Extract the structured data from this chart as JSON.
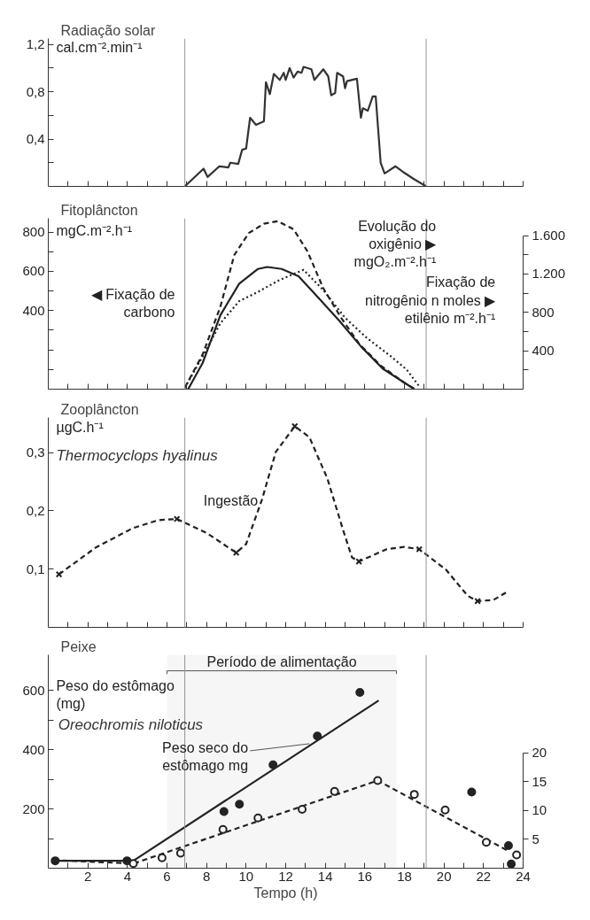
{
  "chart_data": [
    {
      "type": "line",
      "title": "Radiação solar",
      "ylabel": "cal.cm⁻².min⁻¹",
      "xlim": [
        0,
        24
      ],
      "ylim": [
        0,
        1.25
      ],
      "xticks": [
        {
          "value": 1,
          "label": null
        },
        2,
        {
          "value": 3,
          "label": null
        },
        4,
        {
          "value": 5,
          "label": null
        },
        6,
        {
          "value": 7,
          "label": null
        },
        8,
        {
          "value": 9,
          "label": null
        },
        10,
        {
          "value": 11,
          "label": null
        },
        12,
        {
          "value": 13,
          "label": null
        },
        14,
        {
          "value": 15,
          "label": null
        },
        16,
        {
          "value": 17,
          "label": null
        },
        18,
        {
          "value": 19,
          "label": null
        },
        20,
        {
          "value": 21,
          "label": null
        },
        22,
        {
          "value": 23,
          "label": null
        },
        24
      ],
      "yticks": [
        {
          "value": 0.2,
          "label": null
        },
        {
          "value": 0.4,
          "label": "0,4"
        },
        {
          "value": 0.6,
          "label": null
        },
        {
          "value": 0.8,
          "label": "0,8"
        },
        {
          "value": 1.0,
          "label": null
        },
        {
          "value": 1.2,
          "label": "1,2"
        }
      ],
      "tick_labels": "y",
      "grid": false,
      "ref_lines": [
        {
          "axis": "x",
          "value": 6.9,
          "color": "#999999"
        },
        {
          "axis": "x",
          "value": 19.1,
          "color": "#999999"
        }
      ],
      "series": [
        {
          "color": "#333333",
          "line_style": "solid",
          "marker": "none",
          "x": [
            6.9,
            7.85,
            8.05,
            8.65,
            9.1,
            9.2,
            9.6,
            9.8,
            10.0,
            10.2,
            10.5,
            10.9,
            11.0,
            11.2,
            11.4,
            11.7,
            11.9,
            12.0,
            12.2,
            12.4,
            12.6,
            12.8,
            12.9,
            13.3,
            13.45,
            13.9,
            14.15,
            14.3,
            14.5,
            14.6,
            14.9,
            15.0,
            15.1,
            15.6,
            15.8,
            15.9,
            16.15,
            16.4,
            16.55,
            16.8,
            17.0,
            17.55,
            17.95,
            18.5,
            19.1
          ],
          "values": [
            0.0,
            0.15,
            0.08,
            0.17,
            0.16,
            0.2,
            0.19,
            0.31,
            0.32,
            0.58,
            0.52,
            0.55,
            0.88,
            0.78,
            0.95,
            0.9,
            0.96,
            0.9,
            1.0,
            0.92,
            0.97,
            0.96,
            1.01,
            0.99,
            0.9,
            0.99,
            0.93,
            0.77,
            0.79,
            0.96,
            0.93,
            0.83,
            0.89,
            0.91,
            0.58,
            0.66,
            0.64,
            0.76,
            0.76,
            0.2,
            0.11,
            0.17,
            0.12,
            0.06,
            0.0
          ]
        }
      ]
    },
    {
      "type": "line",
      "title": "Fitoplâncton",
      "ylabel": "mgC.m⁻².h⁻¹",
      "xlim": [
        0,
        24
      ],
      "ylim": [
        0,
        870
      ],
      "y2lim": [
        0,
        1780
      ],
      "xticks": [
        {
          "value": 1,
          "label": null
        },
        2,
        {
          "value": 3,
          "label": null
        },
        4,
        {
          "value": 5,
          "label": null
        },
        6,
        {
          "value": 7,
          "label": null
        },
        8,
        {
          "value": 9,
          "label": null
        },
        10,
        {
          "value": 11,
          "label": null
        },
        12,
        {
          "value": 13,
          "label": null
        },
        14,
        {
          "value": 15,
          "label": null
        },
        16,
        {
          "value": 17,
          "label": null
        },
        18,
        {
          "value": 19,
          "label": null
        },
        20,
        {
          "value": 21,
          "label": null
        },
        22,
        {
          "value": 23,
          "label": null
        },
        24
      ],
      "yticks": [
        {
          "value": 100,
          "label": null
        },
        {
          "value": 200,
          "label": null
        },
        {
          "value": 300,
          "label": null
        },
        400,
        {
          "value": 500,
          "label": null
        },
        600,
        {
          "value": 700,
          "label": null
        },
        800
      ],
      "y2ticks": [
        {
          "value": 200,
          "label": null
        },
        400,
        {
          "value": 600,
          "label": null
        },
        800,
        {
          "value": 1000,
          "label": null
        },
        {
          "value": 1200,
          "label": "1.200"
        },
        {
          "value": 1400,
          "label": null
        },
        {
          "value": 1600,
          "label": "1.600"
        }
      ],
      "tick_labels": "y",
      "grid": false,
      "ref_lines": [
        {
          "axis": "x",
          "value": 6.9,
          "color": "#999999"
        },
        {
          "axis": "x",
          "value": 19.1,
          "color": "#999999"
        }
      ],
      "series": [
        {
          "name": "◀ Fixação de carbono",
          "color": "#222222",
          "line_style": "solid",
          "marker": "none",
          "x": [
            7.07,
            7.8,
            8.7,
            9.65,
            10.6,
            11.07,
            11.8,
            12.65,
            13.6,
            14.7,
            15.8,
            16.9,
            18.5
          ],
          "values": [
            0,
            133,
            377,
            537,
            612,
            622,
            612,
            575,
            471,
            349,
            218,
            105,
            0
          ]
        },
        {
          "name": "Evolução do oxigênio ▶ mgO₂.m⁻².h⁻¹",
          "axis": "y2",
          "color": "#222222",
          "line_style": "dashed",
          "marker": "none",
          "x": [
            6.9,
            7.8,
            8.7,
            9.4,
            10.14,
            10.9,
            11.6,
            12.4,
            13.1,
            13.9,
            14.8,
            15.7,
            16.8,
            17.95,
            18.5
          ],
          "values": [
            15,
            361,
            860,
            1397,
            1627,
            1723,
            1750,
            1665,
            1435,
            1051,
            744,
            476,
            246,
            73,
            4
          ]
        },
        {
          "name": "Fixação de nitrogênio n moles ▶ etilênio m⁻².h⁻¹",
          "axis": "y2",
          "color": "#222222",
          "line_style": "dotted",
          "marker": "none",
          "x": [
            6.9,
            7.8,
            8.7,
            9.65,
            10.6,
            11.6,
            12.9,
            13.9,
            15.0,
            16.1,
            17.2,
            18.1,
            18.8
          ],
          "values": [
            15,
            341,
            687,
            917,
            1013,
            1128,
            1243,
            1032,
            744,
            533,
            361,
            207,
            15
          ]
        }
      ]
    },
    {
      "type": "line",
      "title": "Zooplâncton",
      "ylabel": "µgC.h⁻¹",
      "xlim": [
        0,
        24
      ],
      "ylim": [
        0,
        0.36
      ],
      "xticks": [
        {
          "value": 1,
          "label": null
        },
        2,
        {
          "value": 3,
          "label": null
        },
        4,
        {
          "value": 5,
          "label": null
        },
        6,
        {
          "value": 7,
          "label": null
        },
        8,
        {
          "value": 9,
          "label": null
        },
        10,
        {
          "value": 11,
          "label": null
        },
        12,
        {
          "value": 13,
          "label": null
        },
        14,
        {
          "value": 15,
          "label": null
        },
        16,
        {
          "value": 17,
          "label": null
        },
        18,
        {
          "value": 19,
          "label": null
        },
        20,
        {
          "value": 21,
          "label": null
        },
        22,
        {
          "value": 23,
          "label": null
        },
        24
      ],
      "yticks": [
        {
          "value": 0.1,
          "label": "0,1"
        },
        {
          "value": 0.2,
          "label": "0,2"
        },
        {
          "value": 0.3,
          "label": "0,3"
        }
      ],
      "tick_labels": "y",
      "grid": false,
      "annotations": [
        "Thermocyclops hyalinus"
      ],
      "ref_lines": [
        {
          "axis": "x",
          "value": 6.9,
          "color": "#999999"
        },
        {
          "axis": "x",
          "value": 19.1,
          "color": "#999999"
        }
      ],
      "series": [
        {
          "name": "Ingestão",
          "color": "#222222",
          "line_style": "dashed",
          "marker": "none",
          "x": [
            0.54,
            2.4,
            4.26,
            5.57,
            6.5,
            8.0,
            9.5,
            10.0,
            10.8,
            11.5,
            12.46,
            13.2,
            14.1,
            14.9,
            15.35,
            15.7,
            17.1,
            18.0,
            18.75,
            20.1,
            21.2,
            21.7,
            22.5,
            23.2
          ],
          "values": [
            0.091,
            0.137,
            0.17,
            0.184,
            0.186,
            0.162,
            0.128,
            0.143,
            0.219,
            0.301,
            0.345,
            0.326,
            0.256,
            0.167,
            0.12,
            0.113,
            0.134,
            0.138,
            0.134,
            0.099,
            0.054,
            0.045,
            0.047,
            0.061
          ]
        },
        {
          "type": "scatter",
          "color": "#222222",
          "marker": "cross",
          "x": [
            0.54,
            6.5,
            9.5,
            12.46,
            15.7,
            18.75,
            21.7
          ],
          "values": [
            0.091,
            0.186,
            0.128,
            0.345,
            0.113,
            0.134,
            0.045
          ]
        }
      ]
    },
    {
      "type": "line",
      "title": "Peixe",
      "ylabel": "Peso do estômago (mg)",
      "xlabel": "Tempo (h)",
      "xlim": [
        0,
        24
      ],
      "ylim": [
        0,
        720
      ],
      "y2lim": [
        0,
        37
      ],
      "xticks": [
        {
          "value": 1,
          "label": null
        },
        2,
        {
          "value": 3,
          "label": null
        },
        4,
        {
          "value": 5,
          "label": null
        },
        6,
        {
          "value": 7,
          "label": null
        },
        8,
        {
          "value": 9,
          "label": null
        },
        10,
        {
          "value": 11,
          "label": null
        },
        12,
        {
          "value": 13,
          "label": null
        },
        14,
        {
          "value": 15,
          "label": null
        },
        16,
        {
          "value": 17,
          "label": null
        },
        18,
        {
          "value": 19,
          "label": null
        },
        20,
        {
          "value": 21,
          "label": null
        },
        22,
        {
          "value": 23,
          "label": null
        },
        24
      ],
      "yticks": [
        {
          "value": 100,
          "label": null
        },
        200,
        {
          "value": 300,
          "label": null
        },
        400,
        {
          "value": 500,
          "label": null
        },
        600
      ],
      "y2ticks": [
        5,
        10,
        15,
        20
      ],
      "grid": false,
      "annotations": [
        "Oreochromis niloticus",
        {
          "text": "Peso seco do estômago mg",
          "x": 13.2,
          "y": 420
        }
      ],
      "bands": [
        {
          "axis": "x",
          "from": 6.0,
          "to": 17.6,
          "label": "Período de alimentação",
          "color": "#555555"
        }
      ],
      "ref_lines": [
        {
          "axis": "x",
          "value": 6.9,
          "color": "#999999"
        },
        {
          "axis": "x",
          "value": 19.1,
          "color": "#999999"
        }
      ],
      "series": [
        {
          "color": "#222222",
          "line_style": "solid",
          "marker": "none",
          "x": [
            0.2,
            4.3,
            16.7
          ],
          "values": [
            25,
            25,
            566
          ]
        },
        {
          "type": "scatter",
          "color": "#222222",
          "marker": "circle",
          "x": [
            0.35,
            3.98,
            8.88,
            9.66,
            11.36,
            13.6,
            15.75,
            21.4,
            23.26,
            23.4
          ],
          "values": [
            25,
            25,
            191,
            216,
            349,
            446,
            593,
            257,
            76,
            14
          ]
        },
        {
          "axis": "y2",
          "color": "#222222",
          "line_style": "dashed",
          "marker": "none",
          "x": [
            0.3,
            4.3,
            16.65,
            23.3
          ],
          "values": [
            1.4,
            0.8,
            15.2,
            2.9
          ]
        },
        {
          "type": "scatter",
          "axis": "y2",
          "color": "#222222",
          "marker": "circle",
          "x": [
            4.3,
            5.75,
            6.69,
            8.83,
            10.6,
            12.83,
            14.47,
            16.65,
            18.5,
            20.06,
            22.14,
            23.67
          ],
          "values": [
            0.8,
            1.8,
            2.6,
            6.7,
            8.7,
            10.2,
            13.3,
            15.2,
            12.8,
            10.1,
            4.5,
            2.3
          ]
        }
      ]
    }
  ]
}
